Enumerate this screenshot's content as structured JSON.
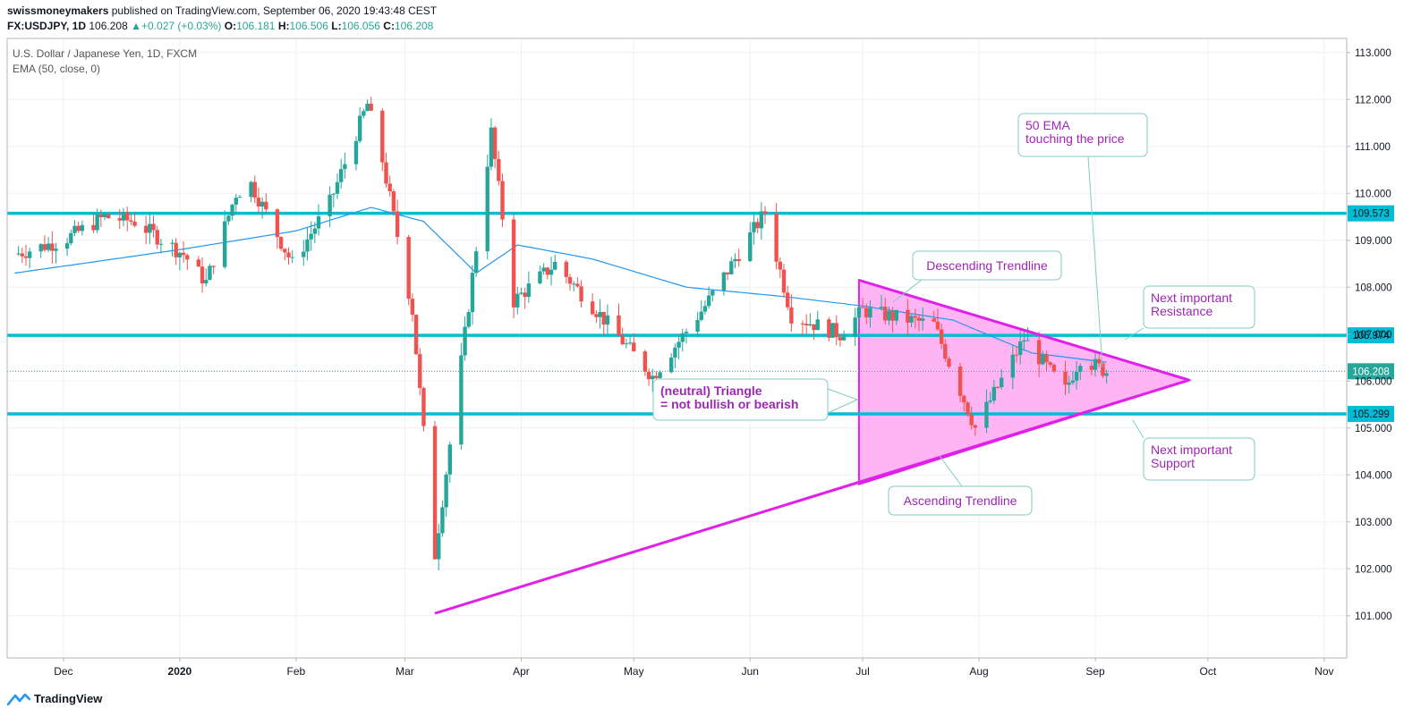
{
  "header": {
    "author": "swissmoneymakers",
    "published": "published on TradingView.com, September 06, 2020 19:43:48 CEST",
    "symbol": "FX:USDJPY, 1D",
    "last": "106.208",
    "change_icon": "triangle-up-icon",
    "change": "+0.027 (+0.03%)",
    "o_label": "O:",
    "o": "106.181",
    "h_label": "H:",
    "h": "106.506",
    "l_label": "L:",
    "l": "106.056",
    "c_label": "C:",
    "c": "106.208"
  },
  "legend": {
    "title": "U.S. Dollar / Japanese Yen, 1D, FXCM",
    "indicator": "EMA (50, close, 0)"
  },
  "footer": {
    "brand": "TradingView",
    "logo_icon": "tradingview-logo-icon"
  },
  "colors": {
    "up": "#26a69a",
    "down": "#ef5350",
    "ema": "#2196f3",
    "hline": "#00bcd4",
    "trendline": "#e020e8",
    "triangle_fill": "#ff9cf0",
    "label_text": "#9c27b0",
    "label_border": "#80cbc4"
  },
  "chart_data": {
    "type": "candlestick",
    "symbol": "USDJPY",
    "timeframe": "1D",
    "x_tick_labels": [
      "Dec",
      "2020",
      "Feb",
      "Mar",
      "Apr",
      "May",
      "Jun",
      "Jul",
      "Aug",
      "Sep",
      "Oct",
      "Nov"
    ],
    "x_range": [
      "2019-11-16",
      "2020-11-07"
    ],
    "y_tick_labels": [
      "101.000",
      "102.000",
      "103.000",
      "104.000",
      "105.000",
      "106.000",
      "107.000",
      "108.000",
      "109.000",
      "110.000",
      "111.000",
      "112.000",
      "113.000"
    ],
    "ylim": [
      100.1,
      113.3
    ],
    "grid": true,
    "last_price": 106.208,
    "price_path": [
      [
        "2019-11-18",
        108.7
      ],
      [
        "2019-12-01",
        109.0
      ],
      [
        "2019-12-12",
        109.5
      ],
      [
        "2019-12-20",
        109.4
      ],
      [
        "2020-01-02",
        108.7
      ],
      [
        "2020-01-08",
        108.1
      ],
      [
        "2020-01-16",
        110.0
      ],
      [
        "2020-01-20",
        110.2
      ],
      [
        "2020-01-31",
        108.5
      ],
      [
        "2020-02-10",
        109.8
      ],
      [
        "2020-02-20",
        111.9
      ],
      [
        "2020-02-24",
        110.7
      ],
      [
        "2020-03-03",
        107.5
      ],
      [
        "2020-03-09",
        102.3
      ],
      [
        "2020-03-17",
        107.0
      ],
      [
        "2020-03-24",
        111.3
      ],
      [
        "2020-03-30",
        107.7
      ],
      [
        "2020-04-10",
        108.5
      ],
      [
        "2020-04-20",
        107.6
      ],
      [
        "2020-05-06",
        106.1
      ],
      [
        "2020-05-20",
        107.6
      ],
      [
        "2020-06-05",
        109.6
      ],
      [
        "2020-06-12",
        107.4
      ],
      [
        "2020-06-25",
        107.0
      ],
      [
        "2020-07-01",
        107.5
      ],
      [
        "2020-07-20",
        107.2
      ],
      [
        "2020-07-31",
        105.0
      ],
      [
        "2020-08-13",
        106.9
      ],
      [
        "2020-08-24",
        105.8
      ],
      [
        "2020-08-28",
        106.5
      ],
      [
        "2020-09-04",
        106.2
      ]
    ],
    "ema_path": [
      [
        "2019-11-18",
        108.3
      ],
      [
        "2020-01-01",
        108.8
      ],
      [
        "2020-02-01",
        109.2
      ],
      [
        "2020-02-21",
        109.7
      ],
      [
        "2020-03-06",
        109.4
      ],
      [
        "2020-03-20",
        108.3
      ],
      [
        "2020-03-31",
        108.9
      ],
      [
        "2020-04-20",
        108.6
      ],
      [
        "2020-05-15",
        108.0
      ],
      [
        "2020-06-10",
        107.8
      ],
      [
        "2020-07-01",
        107.6
      ],
      [
        "2020-07-25",
        107.3
      ],
      [
        "2020-08-15",
        106.6
      ],
      [
        "2020-09-04",
        106.4
      ]
    ],
    "horizontal_levels": [
      {
        "price": 109.573,
        "label": "109.573"
      },
      {
        "price": 106.974,
        "label": "106.974"
      },
      {
        "price": 105.299,
        "label": "105.299"
      }
    ],
    "trendlines": {
      "descending": [
        [
          "2020-06-30",
          108.15
        ],
        [
          "2020-09-26",
          106.02
        ]
      ],
      "ascending": [
        [
          "2020-03-09",
          101.05
        ],
        [
          "2020-09-26",
          106.02
        ]
      ],
      "triangle": [
        [
          "2020-06-30",
          108.15
        ],
        [
          "2020-09-26",
          106.02
        ],
        [
          "2020-06-30",
          103.8
        ]
      ]
    },
    "annotations": [
      {
        "name": "ema-callout",
        "lines": [
          "50 EMA",
          "touching the price"
        ]
      },
      {
        "name": "descending-callout",
        "lines": [
          "Descending Trendline"
        ]
      },
      {
        "name": "resistance-callout",
        "lines": [
          "Next important",
          "Resistance"
        ]
      },
      {
        "name": "triangle-callout",
        "lines": [
          "(neutral) Triangle",
          "= not bullish or bearish"
        ]
      },
      {
        "name": "support-callout",
        "lines": [
          "Next important",
          "Support"
        ]
      },
      {
        "name": "ascending-callout",
        "lines": [
          "Ascending Trendline"
        ]
      }
    ]
  }
}
